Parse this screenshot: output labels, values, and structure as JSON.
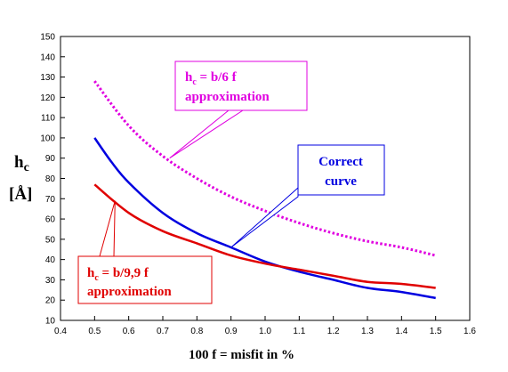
{
  "chart_data": {
    "type": "line",
    "title": "",
    "xlabel": "100 f = misfit in %",
    "ylabel": {
      "symbol": "h",
      "subscript": "c",
      "unit": "[Å]"
    },
    "xlim": [
      0.4,
      1.6
    ],
    "ylim": [
      10,
      150
    ],
    "x_ticks": [
      "0.4",
      "0.5",
      "0.6",
      "0.7",
      "0.8",
      "0.9",
      "1.0",
      "1.1",
      "1.2",
      "1.3",
      "1.4",
      "1.5",
      "1.6"
    ],
    "y_ticks": [
      "10",
      "20",
      "30",
      "40",
      "50",
      "60",
      "70",
      "80",
      "90",
      "100",
      "110",
      "120",
      "130",
      "140",
      "150"
    ],
    "grid": false,
    "series": [
      {
        "key": "b6",
        "color": "#e000e0",
        "style": "dotted",
        "x": [
          0.5,
          0.6,
          0.7,
          0.8,
          0.9,
          1.0,
          1.1,
          1.2,
          1.3,
          1.4,
          1.5
        ],
        "y": [
          128,
          106,
          91,
          80,
          71,
          64,
          58,
          53,
          49,
          46,
          42
        ]
      },
      {
        "key": "correct",
        "color": "#0000e0",
        "style": "solid",
        "x": [
          0.5,
          0.55,
          0.6,
          0.7,
          0.8,
          0.9,
          1.0,
          1.1,
          1.2,
          1.3,
          1.4,
          1.5
        ],
        "y": [
          100,
          88,
          78,
          63,
          53,
          46,
          39,
          34,
          30,
          26,
          24,
          21
        ]
      },
      {
        "key": "b99",
        "color": "#e00000",
        "style": "solid",
        "x": [
          0.5,
          0.6,
          0.7,
          0.8,
          0.9,
          1.0,
          1.1,
          1.2,
          1.3,
          1.4,
          1.5
        ],
        "y": [
          77,
          63,
          54,
          48,
          42,
          38,
          35,
          32,
          29,
          28,
          26
        ]
      }
    ],
    "annotations": [
      {
        "key": "b6",
        "color": "#e000e0",
        "lines": [
          {
            "segments": [
              {
                "t": "h"
              },
              {
                "t": "c",
                "sub": true
              },
              {
                "t": " = b/6 f"
              }
            ]
          },
          {
            "segments": [
              {
                "t": "approximation"
              }
            ]
          }
        ],
        "pointer_to": [
          0.72,
          90
        ]
      },
      {
        "key": "correct",
        "color": "#0000e0",
        "lines": [
          {
            "segments": [
              {
                "t": "Correct"
              }
            ]
          },
          {
            "segments": [
              {
                "t": "curve"
              }
            ]
          }
        ],
        "pointer_to": [
          0.9,
          46
        ]
      },
      {
        "key": "b99",
        "color": "#e00000",
        "lines": [
          {
            "segments": [
              {
                "t": "h"
              },
              {
                "t": "c",
                "sub": true
              },
              {
                "t": " = b/9,9 f"
              }
            ]
          },
          {
            "segments": [
              {
                "t": "approximation"
              }
            ]
          }
        ],
        "pointer_to": [
          0.56,
          69
        ]
      }
    ]
  }
}
